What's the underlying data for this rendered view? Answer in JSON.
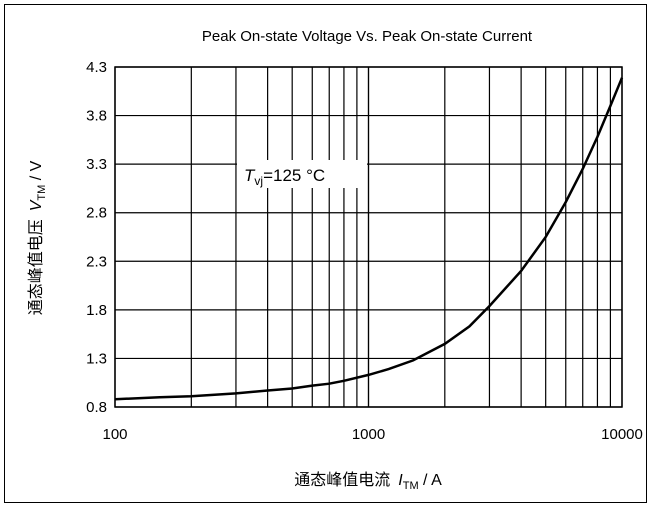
{
  "chart_data": {
    "type": "line",
    "title": "Peak On-state Voltage Vs. Peak On-state Current",
    "xlabel_cn": "通态峰值电流",
    "xlabel_sym": "I",
    "xlabel_sub": "TM",
    "xlabel_unit": " / A",
    "ylabel_cn": "通态峰值电压",
    "ylabel_sym": "V",
    "ylabel_sub": "TM",
    "ylabel_unit": " / V",
    "x_scale": "log",
    "xlim": [
      100,
      10000
    ],
    "ylim": [
      0.8,
      4.3
    ],
    "x_ticks": [
      100,
      1000,
      10000
    ],
    "x_tick_labels": [
      "100",
      "1000",
      "10000"
    ],
    "y_ticks": [
      0.8,
      1.3,
      1.8,
      2.3,
      2.8,
      3.3,
      3.8,
      4.3
    ],
    "y_tick_labels": [
      "0.8",
      "1.3",
      "1.8",
      "2.3",
      "2.8",
      "3.3",
      "3.8",
      "4.3"
    ],
    "grid": true,
    "annotation": {
      "sym": "T",
      "sub": "vj",
      "text": "=125  °C"
    },
    "series": [
      {
        "x": [
          100,
          150,
          200,
          300,
          400,
          500,
          600,
          700,
          800,
          1000,
          1200,
          1500,
          2000,
          2500,
          3000,
          4000,
          5000,
          6000,
          7000,
          8000,
          9000,
          10000
        ],
        "y": [
          0.88,
          0.9,
          0.91,
          0.94,
          0.97,
          0.99,
          1.02,
          1.04,
          1.07,
          1.13,
          1.19,
          1.28,
          1.45,
          1.63,
          1.84,
          2.2,
          2.55,
          2.91,
          3.25,
          3.58,
          3.9,
          4.19
        ]
      }
    ]
  }
}
